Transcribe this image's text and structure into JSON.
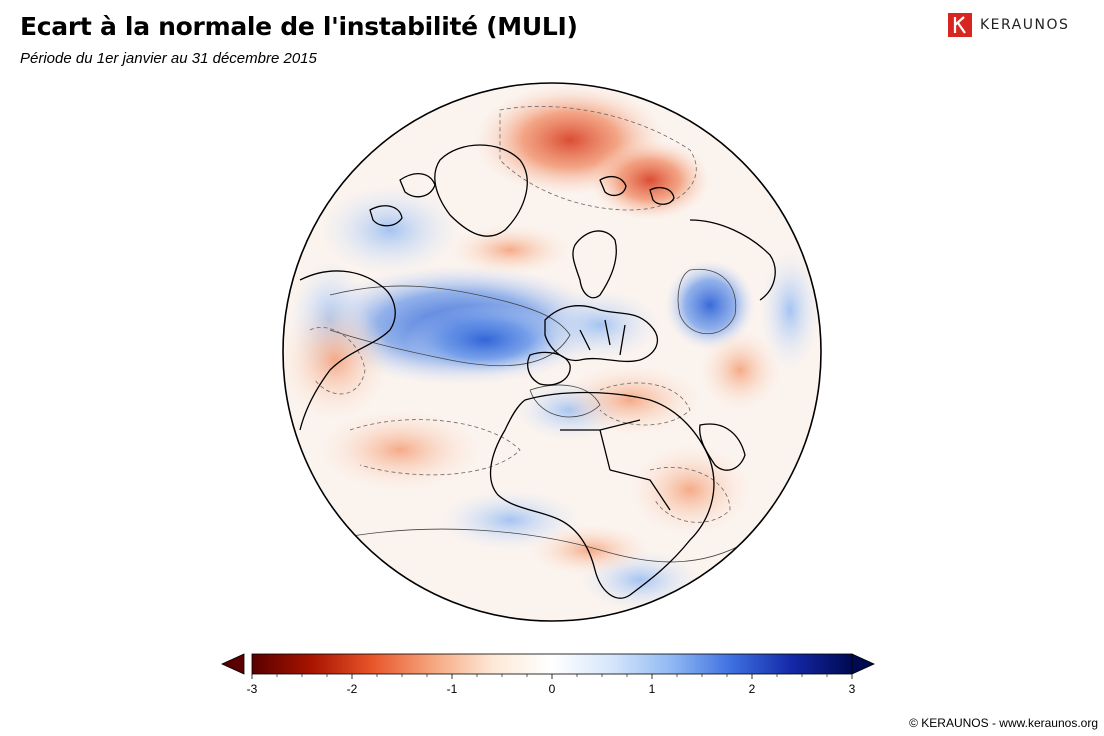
{
  "title": "Ecart à la normale de l'instabilité (MULI)",
  "subtitle": "Période du 1er janvier au 31 décembre 2015",
  "brand": {
    "name": "KERAUNOS",
    "logo_icon": "keraunos-k-icon",
    "logo_color": "#d7261f"
  },
  "copyright": "© KERAUNOS - www.keraunos.org",
  "map": {
    "projection": "orthographic",
    "region": "North Atlantic, Europe, Africa",
    "color_negative": "#c0392b",
    "color_positive": "#2f63d8",
    "land_border_color": "#000000"
  },
  "colorbar": {
    "min": -3,
    "max": 3,
    "ticks": [
      "-3",
      "-2",
      "-1",
      "0",
      "1",
      "2",
      "3"
    ],
    "stops": [
      "#5a0000",
      "#a81400",
      "#e8552a",
      "#f6a57e",
      "#fde8d6",
      "#ffffff",
      "#d6e6fb",
      "#8fb8f3",
      "#3d6fe0",
      "#1428a8",
      "#000a50"
    ],
    "extend": "both"
  }
}
